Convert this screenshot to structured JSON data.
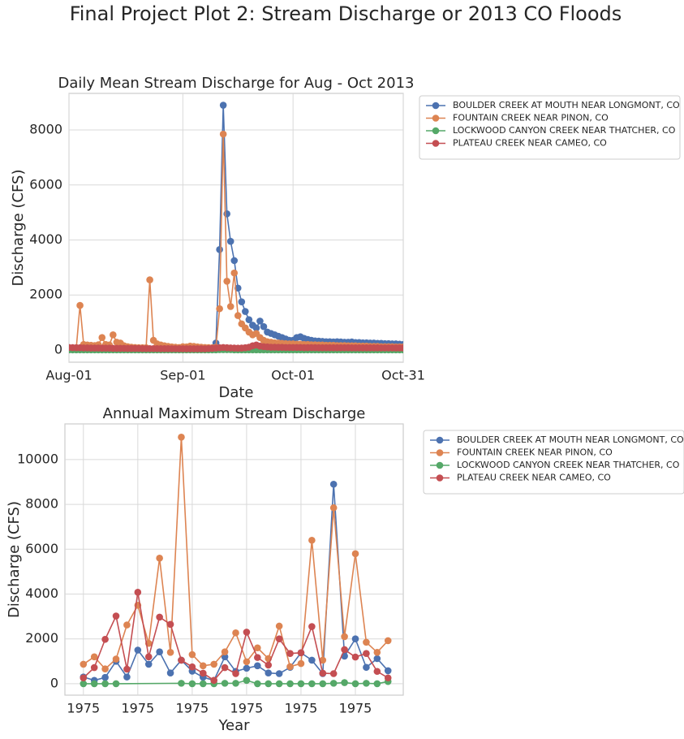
{
  "title": "Final Project Plot 2: Stream Discharge or 2013 CO Floods",
  "chart_data": [
    {
      "type": "line",
      "title": "Daily Mean Stream Discharge for Aug - Oct 2013",
      "xlabel": "Date",
      "ylabel": "Discharge (CFS)",
      "grid": true,
      "legend": "outside upper right",
      "x": [
        "Aug-01",
        "Aug-02",
        "Aug-03",
        "Aug-04",
        "Aug-05",
        "Aug-06",
        "Aug-07",
        "Aug-08",
        "Aug-09",
        "Aug-10",
        "Aug-11",
        "Aug-12",
        "Aug-13",
        "Aug-14",
        "Aug-15",
        "Aug-16",
        "Aug-17",
        "Aug-18",
        "Aug-19",
        "Aug-20",
        "Aug-21",
        "Aug-22",
        "Aug-23",
        "Aug-24",
        "Aug-25",
        "Aug-26",
        "Aug-27",
        "Aug-28",
        "Aug-29",
        "Aug-30",
        "Aug-31",
        "Sep-01",
        "Sep-02",
        "Sep-03",
        "Sep-04",
        "Sep-05",
        "Sep-06",
        "Sep-07",
        "Sep-08",
        "Sep-09",
        "Sep-10",
        "Sep-11",
        "Sep-12",
        "Sep-13",
        "Sep-14",
        "Sep-15",
        "Sep-16",
        "Sep-17",
        "Sep-18",
        "Sep-19",
        "Sep-20",
        "Sep-21",
        "Sep-22",
        "Sep-23",
        "Sep-24",
        "Sep-25",
        "Sep-26",
        "Sep-27",
        "Sep-28",
        "Sep-29",
        "Sep-30",
        "Oct-01",
        "Oct-02",
        "Oct-03",
        "Oct-04",
        "Oct-05",
        "Oct-06",
        "Oct-07",
        "Oct-08",
        "Oct-09",
        "Oct-10",
        "Oct-11",
        "Oct-12",
        "Oct-13",
        "Oct-14",
        "Oct-15",
        "Oct-16",
        "Oct-17",
        "Oct-18",
        "Oct-19",
        "Oct-20",
        "Oct-21",
        "Oct-22",
        "Oct-23",
        "Oct-24",
        "Oct-25",
        "Oct-26",
        "Oct-27",
        "Oct-28",
        "Oct-29",
        "Oct-30",
        "Oct-31"
      ],
      "xlim": [
        "Aug-01",
        "Oct-31"
      ],
      "xticks": [
        "Aug-01",
        "Sep-01",
        "Oct-01",
        "Oct-31"
      ],
      "ylim": [
        -445,
        9330
      ],
      "yticks": [
        0,
        2000,
        4000,
        6000,
        8000
      ],
      "series": [
        {
          "name": "BOULDER CREEK AT MOUTH NEAR LONGMONT, CO",
          "color": "#4c72b0",
          "values": [
            60,
            55,
            50,
            50,
            48,
            45,
            45,
            42,
            40,
            40,
            40,
            38,
            38,
            36,
            35,
            35,
            34,
            33,
            33,
            32,
            32,
            30,
            30,
            30,
            30,
            28,
            28,
            28,
            27,
            27,
            26,
            26,
            25,
            25,
            25,
            26,
            28,
            30,
            35,
            60,
            250,
            3650,
            8900,
            4950,
            3950,
            3250,
            2250,
            1750,
            1400,
            1100,
            900,
            800,
            1050,
            850,
            650,
            600,
            550,
            500,
            450,
            400,
            350,
            350,
            450,
            480,
            420,
            380,
            350,
            330,
            320,
            310,
            300,
            300,
            290,
            300,
            290,
            280,
            280,
            290,
            270,
            270,
            260,
            260,
            250,
            250,
            240,
            240,
            230,
            230,
            220,
            220,
            210,
            200
          ]
        },
        {
          "name": "FOUNTAIN CREEK NEAR PINON, CO",
          "color": "#dd8452",
          "values": [
            50,
            60,
            80,
            1620,
            200,
            180,
            170,
            160,
            190,
            450,
            200,
            180,
            550,
            280,
            250,
            150,
            120,
            100,
            90,
            80,
            80,
            80,
            2550,
            350,
            220,
            180,
            150,
            130,
            110,
            100,
            90,
            120,
            110,
            140,
            130,
            110,
            100,
            90,
            85,
            80,
            100,
            1500,
            7850,
            2500,
            1580,
            2800,
            1250,
            950,
            800,
            650,
            550,
            600,
            450,
            350,
            300,
            280,
            260,
            250,
            240,
            230,
            220,
            220,
            210,
            210,
            200,
            200,
            190,
            190,
            180,
            180,
            170,
            170,
            170,
            160,
            160,
            160,
            150,
            150,
            150,
            140,
            140,
            140,
            130,
            130,
            130,
            120,
            120,
            120,
            120,
            110,
            110,
            110
          ]
        },
        {
          "name": "LOCKWOOD CANYON CREEK NEAR THATCHER, CO",
          "color": "#55a868",
          "values": [
            2,
            2,
            2,
            2,
            2,
            2,
            2,
            2,
            2,
            2,
            2,
            2,
            2,
            2,
            2,
            2,
            2,
            2,
            2,
            2,
            2,
            2,
            2,
            2,
            2,
            2,
            2,
            2,
            2,
            2,
            2,
            2,
            2,
            2,
            2,
            2,
            2,
            2,
            2,
            2,
            2,
            10,
            10,
            10,
            10,
            2,
            2,
            2,
            2,
            2,
            2,
            2,
            2,
            2,
            2,
            2,
            2,
            2,
            2,
            2,
            2,
            3,
            3,
            3,
            3,
            3,
            3,
            3,
            3,
            3,
            3,
            3,
            3,
            3,
            3,
            3,
            3,
            3,
            3,
            3,
            3,
            3,
            3,
            3,
            3,
            3,
            3,
            3,
            3,
            3,
            3,
            3
          ]
        },
        {
          "name": "PLATEAU CREEK NEAR CAMEO, CO",
          "color": "#c44e52",
          "values": [
            90,
            85,
            80,
            80,
            75,
            75,
            70,
            70,
            70,
            65,
            65,
            65,
            60,
            60,
            60,
            60,
            55,
            55,
            55,
            55,
            50,
            50,
            50,
            50,
            50,
            48,
            48,
            48,
            46,
            46,
            45,
            45,
            45,
            44,
            44,
            43,
            43,
            42,
            50,
            60,
            70,
            80,
            90,
            80,
            75,
            70,
            65,
            70,
            80,
            100,
            150,
            180,
            140,
            120,
            110,
            100,
            100,
            95,
            95,
            90,
            90,
            90,
            90,
            90,
            85,
            85,
            85,
            85,
            80,
            80,
            80,
            80,
            80,
            80,
            80,
            80,
            80,
            78,
            78,
            78,
            78,
            76,
            76,
            76,
            76,
            75,
            75,
            75,
            75,
            74,
            74,
            74
          ]
        }
      ]
    },
    {
      "type": "line",
      "title": "Annual Maximum Stream Discharge",
      "xlabel": "Year",
      "ylabel": "Discharge (CFS)",
      "grid": true,
      "legend": "outside upper right",
      "x": [
        0,
        1,
        2,
        3,
        4,
        5,
        6,
        7,
        8,
        9,
        10,
        11,
        12,
        13,
        14,
        15,
        16,
        17,
        18,
        19,
        20,
        21,
        22,
        23,
        24,
        25,
        26,
        27,
        28
      ],
      "xlim": [
        -1.7,
        29.4
      ],
      "xticks": [
        {
          "value": 0,
          "label": "1975"
        },
        {
          "value": 5,
          "label": "1975"
        },
        {
          "value": 10,
          "label": "1975"
        },
        {
          "value": 15,
          "label": "1975"
        },
        {
          "value": 20,
          "label": "1975"
        },
        {
          "value": 25,
          "label": "1975"
        }
      ],
      "ylim": [
        -510,
        11590
      ],
      "yticks": [
        0,
        2000,
        4000,
        6000,
        8000,
        10000
      ],
      "series": [
        {
          "name": "BOULDER CREEK AT MOUTH NEAR LONGMONT, CO",
          "color": "#4c72b0",
          "values": [
            300,
            150,
            280,
            1000,
            300,
            1500,
            870,
            1420,
            480,
            1050,
            560,
            290,
            150,
            1200,
            550,
            690,
            800,
            480,
            450,
            730,
            1380,
            1050,
            450,
            8900,
            1230,
            2000,
            730,
            1120,
            580
          ]
        },
        {
          "name": "FOUNTAIN CREEK NEAR PINON, CO",
          "color": "#dd8452",
          "values": [
            870,
            1200,
            660,
            1100,
            2620,
            3500,
            1800,
            5600,
            1400,
            11000,
            1300,
            800,
            870,
            1420,
            2270,
            980,
            1600,
            1120,
            2570,
            760,
            900,
            6400,
            1050,
            7850,
            2100,
            5800,
            1850,
            1400,
            1920
          ]
        },
        {
          "name": "LOCKWOOD CANYON CREEK NEAR THATCHER, CO",
          "color": "#55a868",
          "x": [
            0,
            1,
            2,
            3,
            9,
            10,
            11,
            12,
            13,
            14,
            15,
            16,
            17,
            18,
            19,
            20,
            21,
            22,
            23,
            24,
            25,
            26,
            27,
            28
          ],
          "values": [
            0,
            0,
            0,
            0,
            20,
            0,
            0,
            0,
            20,
            20,
            150,
            0,
            0,
            0,
            0,
            0,
            0,
            0,
            20,
            50,
            0,
            20,
            0,
            100
          ]
        },
        {
          "name": "PLATEAU CREEK NEAR CAMEO, CO",
          "color": "#c44e52",
          "values": [
            260,
            720,
            1980,
            3020,
            650,
            4080,
            1200,
            2970,
            2650,
            1050,
            750,
            470,
            150,
            720,
            450,
            2300,
            1170,
            830,
            2000,
            1350,
            1380,
            2550,
            470,
            450,
            1520,
            1190,
            1350,
            550,
            260
          ]
        }
      ]
    }
  ]
}
